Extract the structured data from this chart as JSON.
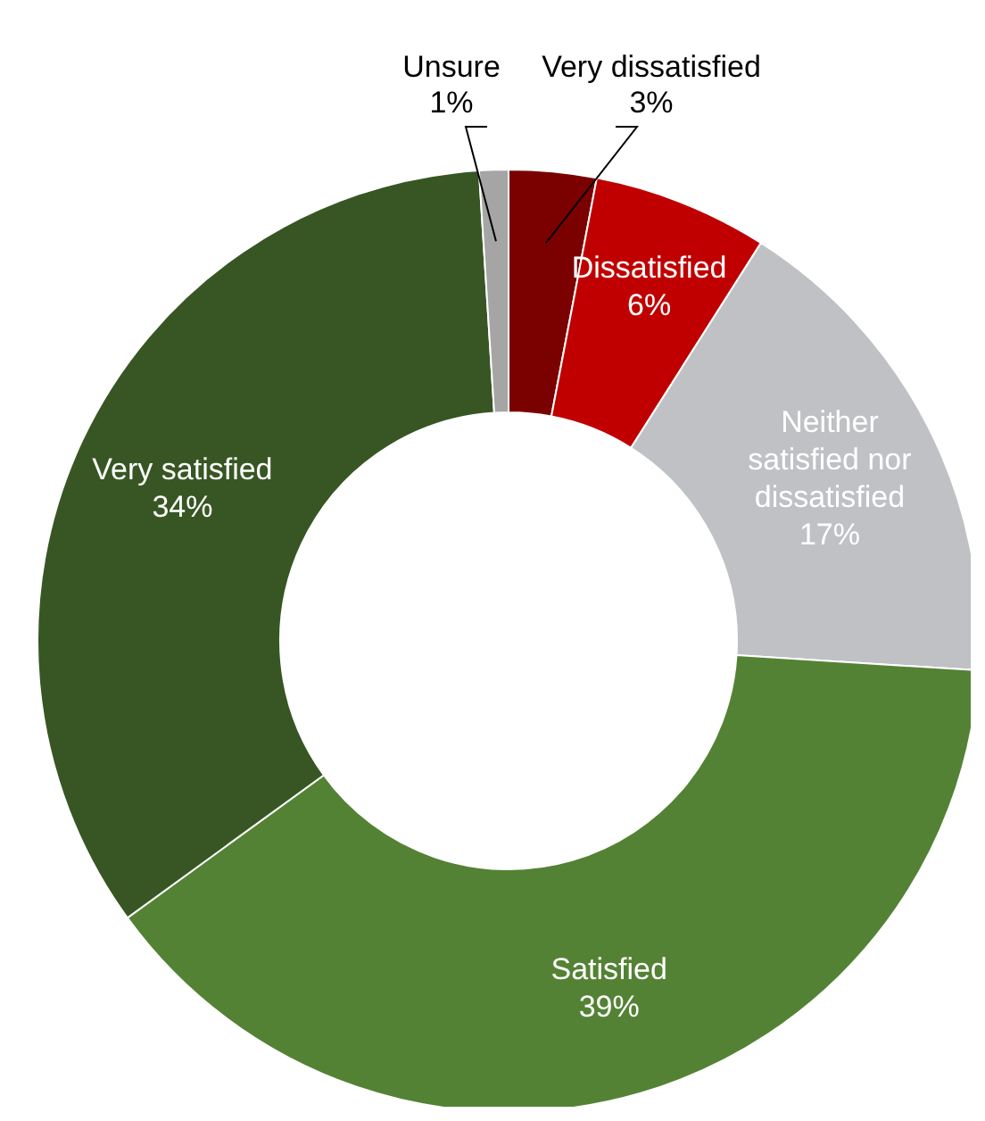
{
  "chart_data": {
    "type": "donut",
    "categories": [
      "Very dissatisfied",
      "Dissatisfied",
      "Neither satisfied nor dissatisfied",
      "Satisfied",
      "Very satisfied",
      "Unsure"
    ],
    "values": [
      3,
      6,
      17,
      39,
      34,
      1
    ],
    "value_labels": [
      "3%",
      "6%",
      "17%",
      "39%",
      "34%",
      "1%"
    ],
    "colors": [
      "#7b0000",
      "#c00000",
      "#bfc1c4",
      "#548235",
      "#375623",
      "#a5a5a5"
    ],
    "legend": false
  }
}
